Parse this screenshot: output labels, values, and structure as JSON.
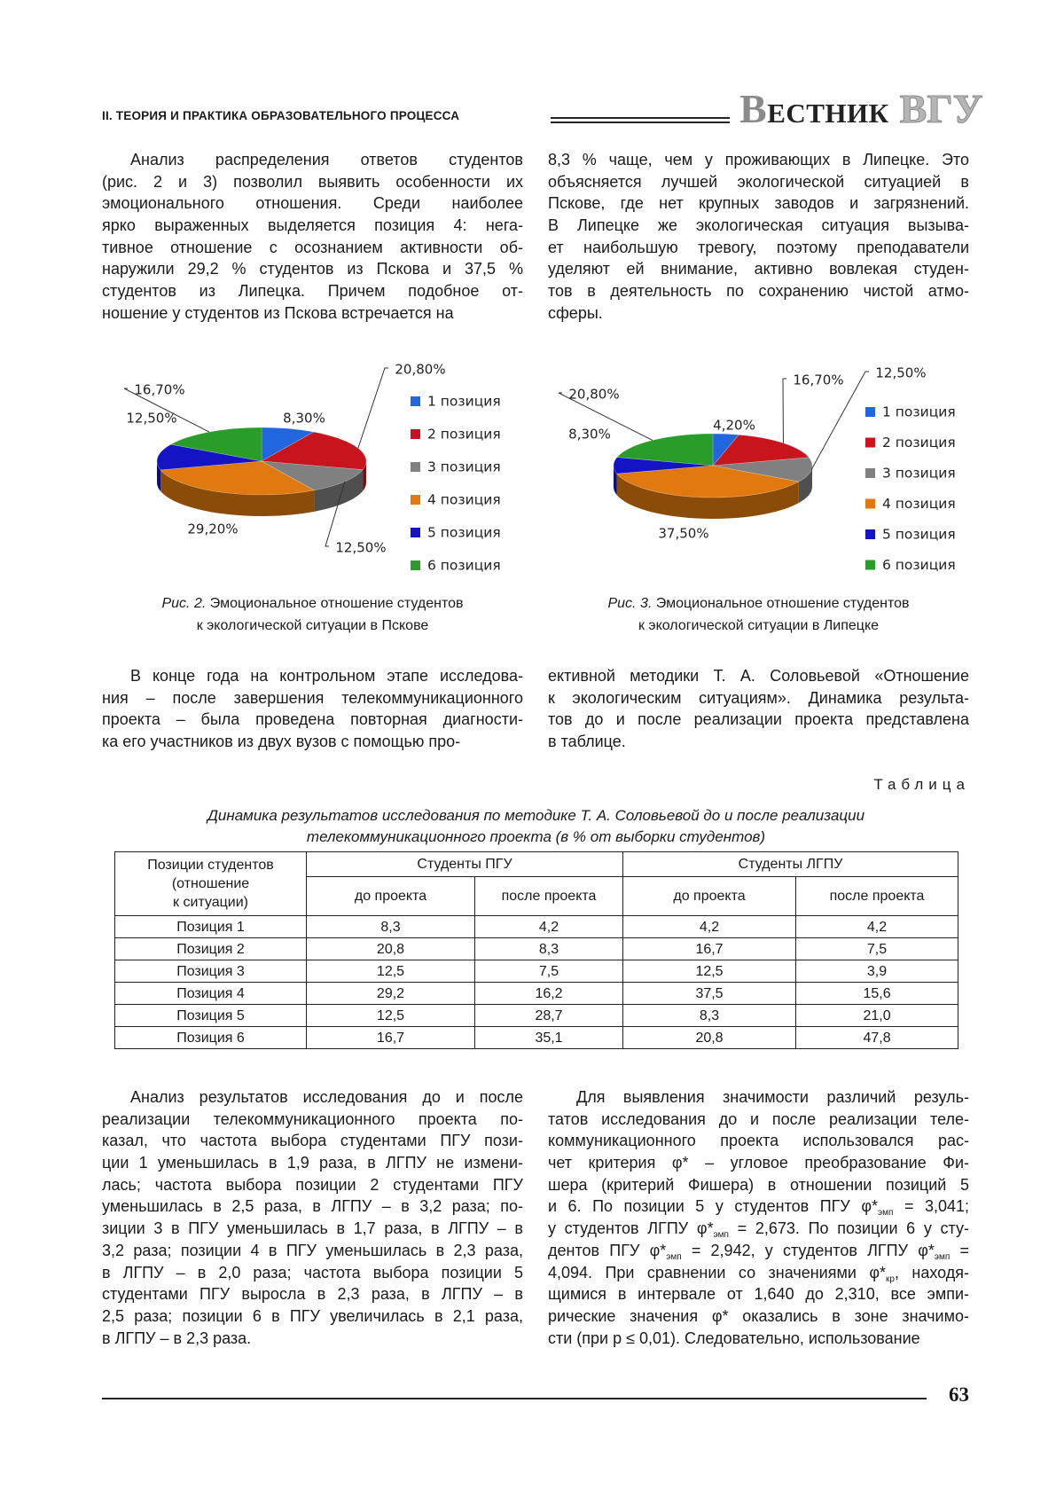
{
  "header": {
    "section": "II. ТЕОРИЯ И ПРАКТИКА ОБРАЗОВАТЕЛЬНОГО ПРОЦЕССА",
    "journal": [
      "ВЕСТНИК",
      "ВГУ"
    ]
  },
  "text_top": [
    [
      "Анализ распределения ответов студентов",
      "(рис. 2 и 3) позволил выявить особенности их",
      "эмоционального отношения. Среди наиболее",
      "ярко выраженных выделяется позиция 4: нега-",
      "тивное отношение с осознанием активности об-",
      "наружили 29,2 % студентов из Пскова и 37,5 %",
      "студентов из Липецка. Причем подобное от-",
      "ношение у студентов из Пскова встречается на"
    ],
    [
      "8,3 % чаще, чем у проживающих в Липецке. Это",
      "объясняется лучшей экологической ситуацией в",
      "Пскове, где нет крупных заводов и загрязнений.",
      "В Липецке же экологическая ситуация вызыва-",
      "ет наибольшую тревогу, поэтому преподаватели",
      "уделяют ей внимание, активно вовлекая студен-",
      "тов в деятельность по сохранению чистой атмо-",
      "сферы."
    ]
  ],
  "chart_data": [
    {
      "type": "pie",
      "categories": [
        "1 позиция",
        "2 позиция",
        "3 позиция",
        "4 позиция",
        "5 позиция",
        "6 позиция"
      ],
      "values": [
        8.3,
        20.8,
        12.5,
        29.2,
        12.5,
        16.7
      ],
      "value_labels": [
        "8,30%",
        "20,80%",
        "12,50%",
        "29,20%",
        "12,50%",
        "16,70%"
      ],
      "colors": [
        "#2266dd",
        "#c8141c",
        "#808080",
        "#e07a10",
        "#1414c4",
        "#2a9c2a"
      ],
      "caption": {
        "label": "Рис. 2.",
        "lines": [
          "Эмоциональное отношение студентов",
          "к экологической ситуации в Пскове"
        ]
      }
    },
    {
      "type": "pie",
      "categories": [
        "1 позиция",
        "2 позиция",
        "3 позиция",
        "4 позиция",
        "5 позиция",
        "6 позиция"
      ],
      "values": [
        4.2,
        16.7,
        12.5,
        37.5,
        8.3,
        20.8
      ],
      "value_labels": [
        "4,20%",
        "16,70%",
        "12,50%",
        "37,50%",
        "8,30%",
        "20,80%"
      ],
      "colors": [
        "#2266dd",
        "#c8141c",
        "#808080",
        "#e07a10",
        "#1414c4",
        "#2a9c2a"
      ],
      "caption": {
        "label": "Рис. 3.",
        "lines": [
          "Эмоциональное отношение студентов",
          "к экологической ситуации в Липецке"
        ]
      }
    }
  ],
  "text_middle": [
    [
      "В конце года на контрольном этапе исследова-",
      "ния – после завершения телекоммуникационного",
      "проекта – была проведена повторная диагности-",
      "ка его участников из двух вузов с помощью про-"
    ],
    [
      "ективной методики Т. А. Соловьевой «Отношение",
      "к экологическим ситуациям». Динамика результа-",
      "тов до и после реализации проекта представлена",
      "в таблице."
    ]
  ],
  "table": {
    "label": "Таблица",
    "title": [
      "Динамика результатов исследования по методике Т. А. Соловьевой до и после реализации",
      "телекоммуникационного проекта (в % от выборки студентов)"
    ],
    "corner": [
      "Позиции студентов",
      "(отношение",
      "к ситуации)"
    ],
    "groups": [
      "Студенты ПГУ",
      "Студенты ЛГПУ"
    ],
    "columns": [
      "до проекта",
      "после проекта",
      "до проекта",
      "после проекта"
    ],
    "rows": [
      [
        "Позиция 1",
        "8,3",
        "4,2",
        "4,2",
        "4,2"
      ],
      [
        "Позиция 2",
        "20,8",
        "8,3",
        "16,7",
        "7,5"
      ],
      [
        "Позиция 3",
        "12,5",
        "7,5",
        "12,5",
        "3,9"
      ],
      [
        "Позиция 4",
        "29,2",
        "16,2",
        "37,5",
        "15,6"
      ],
      [
        "Позиция 5",
        "12,5",
        "28,7",
        "8,3",
        "21,0"
      ],
      [
        "Позиция 6",
        "16,7",
        "35,1",
        "20,8",
        "47,8"
      ]
    ]
  },
  "text_bottom": [
    [
      "Анализ результатов исследования до и после",
      "реализации телекоммуникационного проекта по-",
      "казал, что частота выбора студентами ПГУ пози-",
      "ции 1 уменьшилась в 1,9 раза, в ЛГПУ не измени-",
      "лась; частота выбора позиции 2 студентами ПГУ",
      "уменьшилась в 2,5 раза, в ЛГПУ – в 3,2 раза; по-",
      "зиции 3 в ПГУ уменьшилась в 1,7 раза, в ЛГПУ – в",
      "3,2 раза; позиции 4 в ПГУ уменьшилась в 2,3 раза,",
      "в ЛГПУ – в 2,0 раза; частота выбора позиции 5",
      "студентами ПГУ выросла в 2,3 раза, в ЛГПУ – в",
      "2,5 раза; позиции 6 в ПГУ увеличилась в 2,1 раза,",
      "в ЛГПУ – в 2,3 раза."
    ],
    [
      "Для выявления значимости различий резуль-",
      "татов исследования до и после реализации теле-",
      "коммуникационного проекта использовался рас-",
      "чет критерия φ* – угловое преобразование Фи-",
      "шера (критерий Фишера) в отношении позиций 5",
      [
        "и 6. По позиции 5 у студентов ПГУ φ*",
        {
          "sub": "эмп"
        },
        " = 3,041;"
      ],
      [
        "у студентов ЛГПУ φ*",
        {
          "sub": "эмп"
        },
        " = 2,673. По позиции 6 у сту-"
      ],
      [
        "дентов ПГУ φ*",
        {
          "sub": "эмп"
        },
        " = 2,942, у студентов ЛГПУ φ*",
        {
          "sub": "эмп"
        },
        " ="
      ],
      [
        "4,094. При сравнении со значениями φ*",
        {
          "sub": "кр"
        },
        ", находя-"
      ],
      "щимися в интервале от 1,640 до 2,310, все эмпи-",
      "рические значения φ* оказались в зоне значимо-",
      "сти (при p ≤ 0,01). Следовательно, использование"
    ]
  ],
  "page_number": "63"
}
